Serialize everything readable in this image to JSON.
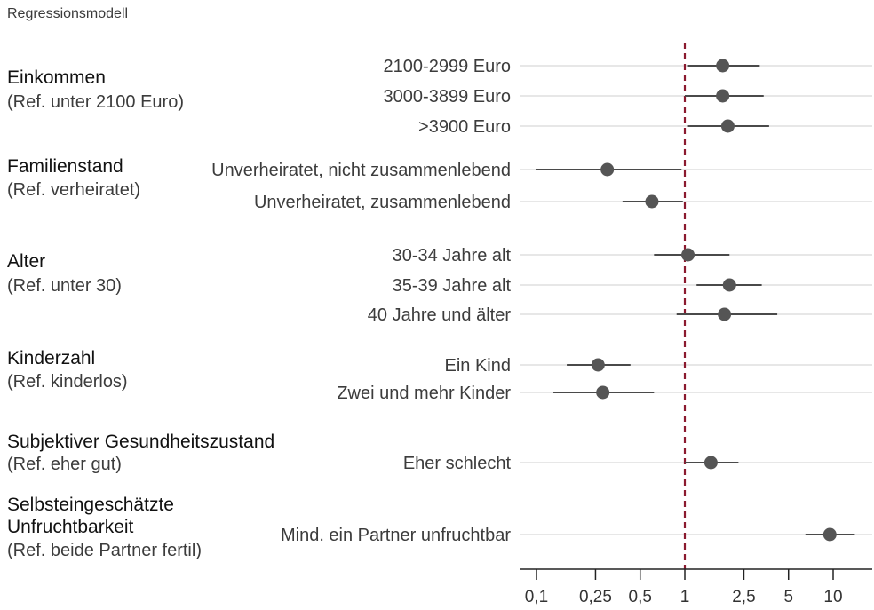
{
  "chart_data": {
    "type": "forest",
    "title": "Regressionsmodell",
    "x_scale": "log",
    "x_range": [
      0.075,
      15
    ],
    "reference_value": 1,
    "reference_color": "#8b1a2f",
    "point_color": "#555555",
    "x_ticks": [
      {
        "value": 0.1,
        "label": "0,1"
      },
      {
        "value": 0.25,
        "label": "0,25"
      },
      {
        "value": 0.5,
        "label": "0,5"
      },
      {
        "value": 1,
        "label": "1"
      },
      {
        "value": 2.5,
        "label": "2,5"
      },
      {
        "value": 5,
        "label": "5"
      },
      {
        "value": 10,
        "label": "10"
      }
    ],
    "groups": [
      {
        "name_lines": [
          "Einkommen"
        ],
        "ref": "(Ref. unter 2100 Euro)",
        "items": [
          {
            "label": "2100-2999 Euro",
            "estimate": 1.8,
            "lower": 1.05,
            "upper": 3.2
          },
          {
            "label": "3000-3899 Euro",
            "estimate": 1.8,
            "lower": 1.0,
            "upper": 3.4
          },
          {
            "label": ">3900 Euro",
            "estimate": 1.95,
            "lower": 1.05,
            "upper": 3.7
          }
        ]
      },
      {
        "name_lines": [
          "Familienstand"
        ],
        "ref": "(Ref. verheiratet)",
        "items": [
          {
            "label": "Unverheiratet, nicht zusammenlebend",
            "estimate": 0.3,
            "lower": 0.1,
            "upper": 0.95
          },
          {
            "label": "Unverheiratet, zusammenlebend",
            "estimate": 0.6,
            "lower": 0.38,
            "upper": 0.97
          }
        ]
      },
      {
        "name_lines": [
          "Alter"
        ],
        "ref": "(Ref. unter 30)",
        "items": [
          {
            "label": "30-34 Jahre alt",
            "estimate": 1.05,
            "lower": 0.62,
            "upper": 2.0
          },
          {
            "label": "35-39 Jahre alt",
            "estimate": 2.0,
            "lower": 1.2,
            "upper": 3.3
          },
          {
            "label": "40 Jahre und älter",
            "estimate": 1.85,
            "lower": 0.88,
            "upper": 4.2
          }
        ]
      },
      {
        "name_lines": [
          "Kinderzahl"
        ],
        "ref": "(Ref. kinderlos)",
        "items": [
          {
            "label": "Ein Kind",
            "estimate": 0.26,
            "lower": 0.16,
            "upper": 0.43
          },
          {
            "label": "Zwei und mehr Kinder",
            "estimate": 0.28,
            "lower": 0.13,
            "upper": 0.62
          }
        ]
      },
      {
        "name_lines": [
          "Subjektiver Gesundheitszustand"
        ],
        "ref": "(Ref. eher gut)",
        "items": [
          {
            "label": "Eher schlecht",
            "estimate": 1.5,
            "lower": 1.0,
            "upper": 2.3
          }
        ]
      },
      {
        "name_lines": [
          "Selbsteingeschätzte",
          "Unfruchtbarkeit"
        ],
        "ref": "(Ref. beide Partner fertil)",
        "items": [
          {
            "label": "Mind. ein Partner unfruchtbar",
            "estimate": 9.5,
            "lower": 6.5,
            "upper": 14
          }
        ]
      }
    ]
  }
}
